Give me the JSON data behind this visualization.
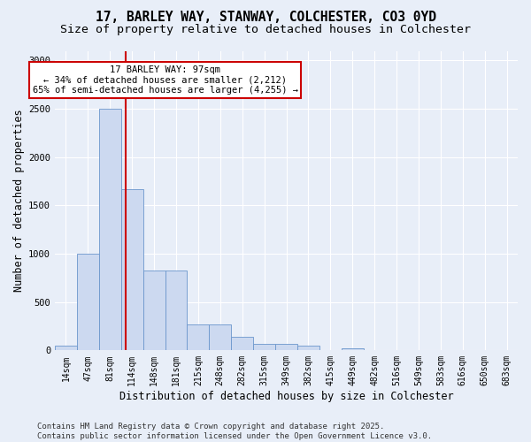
{
  "title_line1": "17, BARLEY WAY, STANWAY, COLCHESTER, CO3 0YD",
  "title_line2": "Size of property relative to detached houses in Colchester",
  "xlabel": "Distribution of detached houses by size in Colchester",
  "ylabel": "Number of detached properties",
  "bar_labels": [
    "14sqm",
    "47sqm",
    "81sqm",
    "114sqm",
    "148sqm",
    "181sqm",
    "215sqm",
    "248sqm",
    "282sqm",
    "315sqm",
    "349sqm",
    "382sqm",
    "415sqm",
    "449sqm",
    "482sqm",
    "516sqm",
    "549sqm",
    "583sqm",
    "616sqm",
    "650sqm",
    "683sqm"
  ],
  "bar_values": [
    50,
    1000,
    2500,
    1670,
    830,
    830,
    270,
    270,
    140,
    70,
    70,
    50,
    0,
    20,
    0,
    0,
    0,
    0,
    0,
    0,
    0
  ],
  "bar_color": "#ccd9f0",
  "bar_edge_color": "#6b96cc",
  "background_color": "#e8eef8",
  "grid_color": "#ffffff",
  "ylim": [
    0,
    3100
  ],
  "yticks": [
    0,
    500,
    1000,
    1500,
    2000,
    2500,
    3000
  ],
  "property_label": "17 BARLEY WAY: 97sqm",
  "annotation_line1": "← 34% of detached houses are smaller (2,212)",
  "annotation_line2": "65% of semi-detached houses are larger (4,255) →",
  "vline_color": "#cc0000",
  "vline_position": 2.72,
  "annotation_box_color": "#ffffff",
  "annotation_box_edge": "#cc0000",
  "footer_line1": "Contains HM Land Registry data © Crown copyright and database right 2025.",
  "footer_line2": "Contains public sector information licensed under the Open Government Licence v3.0.",
  "title_fontsize": 10.5,
  "subtitle_fontsize": 9.5,
  "axis_label_fontsize": 8.5,
  "tick_fontsize": 7,
  "annotation_fontsize": 7.5,
  "footer_fontsize": 6.5
}
